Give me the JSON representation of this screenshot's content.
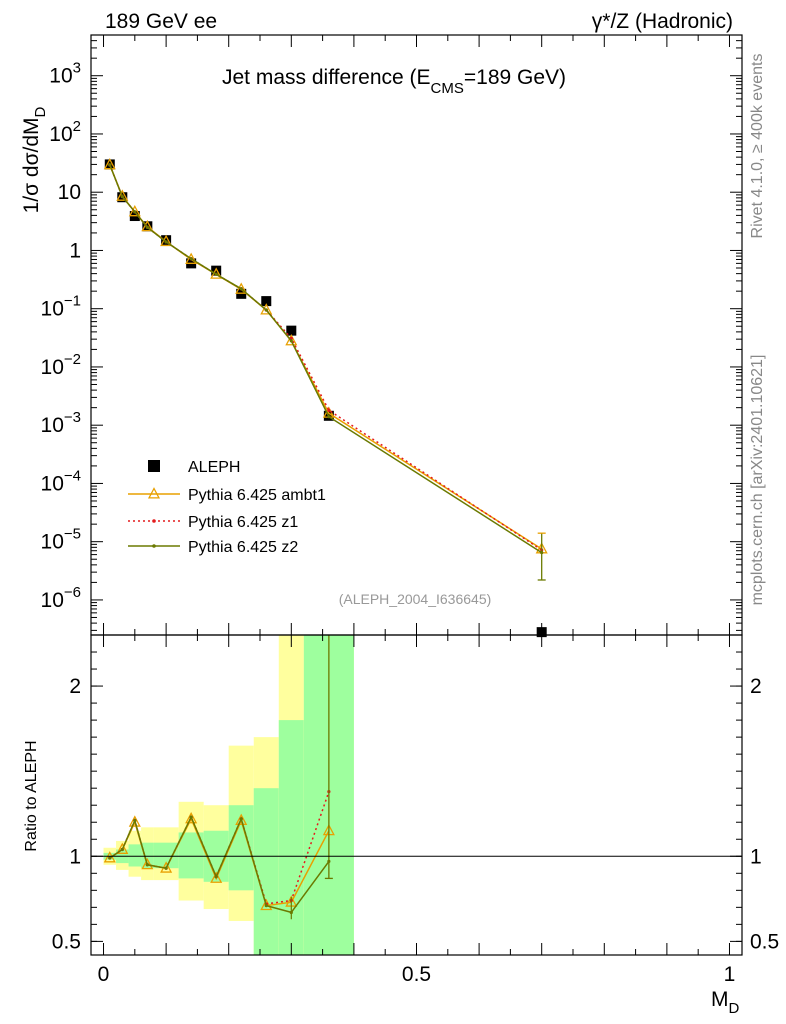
{
  "header": {
    "left": "189 GeV ee",
    "right": "γ*/Z (Hadronic)"
  },
  "side_notes": {
    "version": "Rivet 4.1.0, ≥ 400k events",
    "source": "mcplots.cern.ch [arXiv:2401.10621]"
  },
  "chart_data": [
    {
      "panel": "main",
      "type": "line",
      "title": "Jet mass difference (E_CMS=189 GeV)",
      "title_parts": {
        "main": "Jet mass difference (E",
        "sub": "CMS",
        "tail": "=189 GeV)"
      },
      "ylabel": "1/σ  dσ/dM_D",
      "xlabel": "M_D",
      "analysis_tag": "(ALEPH_2004_I636645)",
      "xlim": [
        -0.02,
        1.02
      ],
      "ylim": [
        2.5e-07,
        5000
      ],
      "yscale": "log",
      "yticks": [
        {
          "v": 1e-06,
          "base": "10",
          "exp": "−6"
        },
        {
          "v": 1e-05,
          "base": "10",
          "exp": "−5"
        },
        {
          "v": 0.0001,
          "base": "10",
          "exp": "−4"
        },
        {
          "v": 0.001,
          "base": "10",
          "exp": "−3"
        },
        {
          "v": 0.01,
          "base": "10",
          "exp": "−2"
        },
        {
          "v": 0.1,
          "base": "10",
          "exp": "−1"
        },
        {
          "v": 1,
          "base": "1",
          "exp": ""
        },
        {
          "v": 10,
          "base": "10",
          "exp": ""
        },
        {
          "v": 100,
          "base": "10",
          "exp": "2"
        },
        {
          "v": 1000,
          "base": "10",
          "exp": "3"
        }
      ],
      "legend_position": "lower-left",
      "series": [
        {
          "name": "ALEPH",
          "style": "data",
          "color": "#000000",
          "x": [
            0.01,
            0.03,
            0.05,
            0.07,
            0.1,
            0.14,
            0.18,
            0.22,
            0.26,
            0.3,
            0.36,
            0.7
          ],
          "y": [
            30,
            8.2,
            3.9,
            2.6,
            1.5,
            0.6,
            0.45,
            0.18,
            0.135,
            0.042,
            0.00145,
            2.8e-07
          ]
        },
        {
          "name": "Pythia 6.425 ambt1",
          "style": "triangle",
          "color": "#e8a000",
          "x": [
            0.01,
            0.03,
            0.05,
            0.07,
            0.1,
            0.14,
            0.18,
            0.22,
            0.26,
            0.3,
            0.36,
            0.7
          ],
          "y": [
            29.5,
            8.5,
            4.6,
            2.55,
            1.42,
            0.7,
            0.39,
            0.215,
            0.095,
            0.028,
            0.0016,
            7.5e-06
          ]
        },
        {
          "name": "Pythia 6.425 z1",
          "style": "dotted",
          "color": "#e41a1c",
          "x": [
            0.01,
            0.03,
            0.05,
            0.07,
            0.1,
            0.14,
            0.18,
            0.22,
            0.26,
            0.3,
            0.36,
            0.7
          ],
          "y": [
            29.5,
            8.4,
            4.6,
            2.5,
            1.4,
            0.72,
            0.39,
            0.22,
            0.095,
            0.031,
            0.0018,
            7.2e-06
          ]
        },
        {
          "name": "Pythia 6.425 z2",
          "style": "line",
          "color": "#6b7a00",
          "x": [
            0.01,
            0.03,
            0.05,
            0.07,
            0.1,
            0.14,
            0.18,
            0.22,
            0.26,
            0.3,
            0.36,
            0.7
          ],
          "y": [
            29.5,
            8.4,
            4.6,
            2.5,
            1.4,
            0.72,
            0.39,
            0.22,
            0.095,
            0.028,
            0.0014,
            6.5e-06
          ]
        }
      ]
    },
    {
      "panel": "ratio",
      "type": "line",
      "ylabel": "Ratio to ALEPH",
      "xlabel": "M_D",
      "xlim": [
        -0.02,
        1.02
      ],
      "ylim": [
        0.42,
        2.3
      ],
      "yticks": [
        0.5,
        1,
        2
      ],
      "xticks": [
        0,
        0.5,
        1
      ],
      "bands": {
        "edges": [
          0.0,
          0.02,
          0.04,
          0.06,
          0.08,
          0.12,
          0.16,
          0.2,
          0.24,
          0.28,
          0.32,
          0.4
        ],
        "stat_syst_low": [
          0.95,
          0.92,
          0.88,
          0.86,
          0.86,
          0.74,
          0.69,
          0.62,
          0.42,
          0.42,
          0.42
        ],
        "stat_syst_high": [
          1.05,
          1.09,
          1.15,
          1.17,
          1.17,
          1.32,
          1.3,
          1.65,
          1.7,
          2.3,
          2.3
        ],
        "stat_low": [
          0.98,
          0.96,
          0.94,
          0.93,
          0.93,
          0.87,
          0.85,
          0.8,
          0.42,
          0.42,
          0.42
        ],
        "stat_high": [
          1.02,
          1.04,
          1.07,
          1.08,
          1.08,
          1.14,
          1.15,
          1.3,
          1.4,
          1.8,
          2.3
        ],
        "outer_color": "#ffff9e",
        "inner_color": "#9eff9e"
      },
      "series": [
        {
          "name": "Pythia 6.425 ambt1",
          "style": "triangle",
          "color": "#e8a000",
          "x": [
            0.01,
            0.03,
            0.05,
            0.07,
            0.1,
            0.14,
            0.18,
            0.22,
            0.26,
            0.3,
            0.36
          ],
          "y": [
            0.99,
            1.04,
            1.2,
            0.95,
            0.93,
            1.22,
            0.87,
            1.21,
            0.71,
            0.73,
            1.15
          ]
        },
        {
          "name": "Pythia 6.425 z1",
          "style": "dotted",
          "color": "#e41a1c",
          "x": [
            0.01,
            0.03,
            0.05,
            0.07,
            0.1,
            0.14,
            0.18,
            0.22,
            0.26,
            0.3,
            0.36
          ],
          "y": [
            0.99,
            1.04,
            1.21,
            0.95,
            0.93,
            1.23,
            0.88,
            1.22,
            0.72,
            0.74,
            1.38
          ]
        },
        {
          "name": "Pythia 6.425 z2",
          "style": "line",
          "color": "#6b7a00",
          "x": [
            0.01,
            0.03,
            0.05,
            0.07,
            0.1,
            0.14,
            0.18,
            0.22,
            0.26,
            0.3,
            0.36
          ],
          "y": [
            0.99,
            1.04,
            1.21,
            0.95,
            0.93,
            1.23,
            0.88,
            1.22,
            0.71,
            0.67,
            0.97
          ]
        }
      ]
    }
  ]
}
